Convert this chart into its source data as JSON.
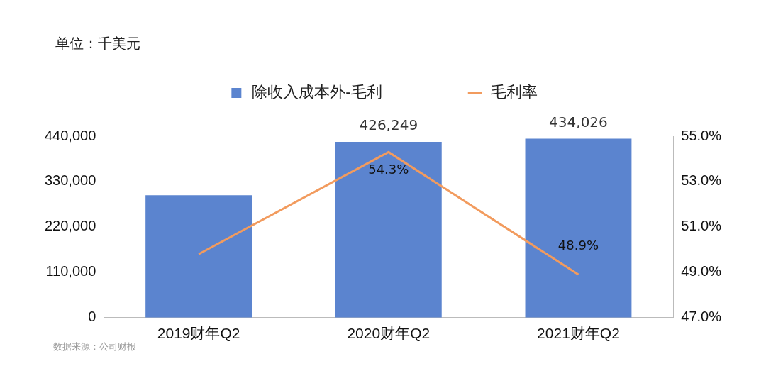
{
  "chart_data": {
    "type": "bar",
    "categories": [
      "2019财年Q2",
      "2020财年Q2",
      "2021财年Q2"
    ],
    "series": [
      {
        "name": "除收入成本外-毛利",
        "color": "#5b84cf",
        "values": [
          297000,
          426249,
          434026
        ],
        "value_labels": [
          null,
          "426,249",
          "434,026"
        ]
      },
      {
        "name": "毛利率",
        "type": "line",
        "axis": "y2",
        "color": "#f29b5e",
        "values": [
          49.8,
          54.3,
          48.9
        ],
        "value_labels": [
          null,
          "54.3%",
          "48.9%"
        ]
      }
    ],
    "ylim": [
      0,
      440000
    ],
    "yticks": [
      {
        "value": 0,
        "label": "0"
      },
      {
        "value": 110000,
        "label": "110,000"
      },
      {
        "value": 220000,
        "label": "220,000"
      },
      {
        "value": 330000,
        "label": "330,000"
      },
      {
        "value": 440000,
        "label": "440,000"
      }
    ],
    "y2lim": [
      47,
      55
    ],
    "y2ticks": [
      {
        "value": 47,
        "label": "47.0%"
      },
      {
        "value": 49,
        "label": "49.0%"
      },
      {
        "value": 51,
        "label": "51.0%"
      },
      {
        "value": 53,
        "label": "53.0%"
      },
      {
        "value": 55,
        "label": "55.0%"
      }
    ],
    "legend": "top",
    "grid": false,
    "marker": "none",
    "line_style": "solid",
    "annotations": [
      "单位：千美元",
      "数据来源：公司财报"
    ]
  }
}
